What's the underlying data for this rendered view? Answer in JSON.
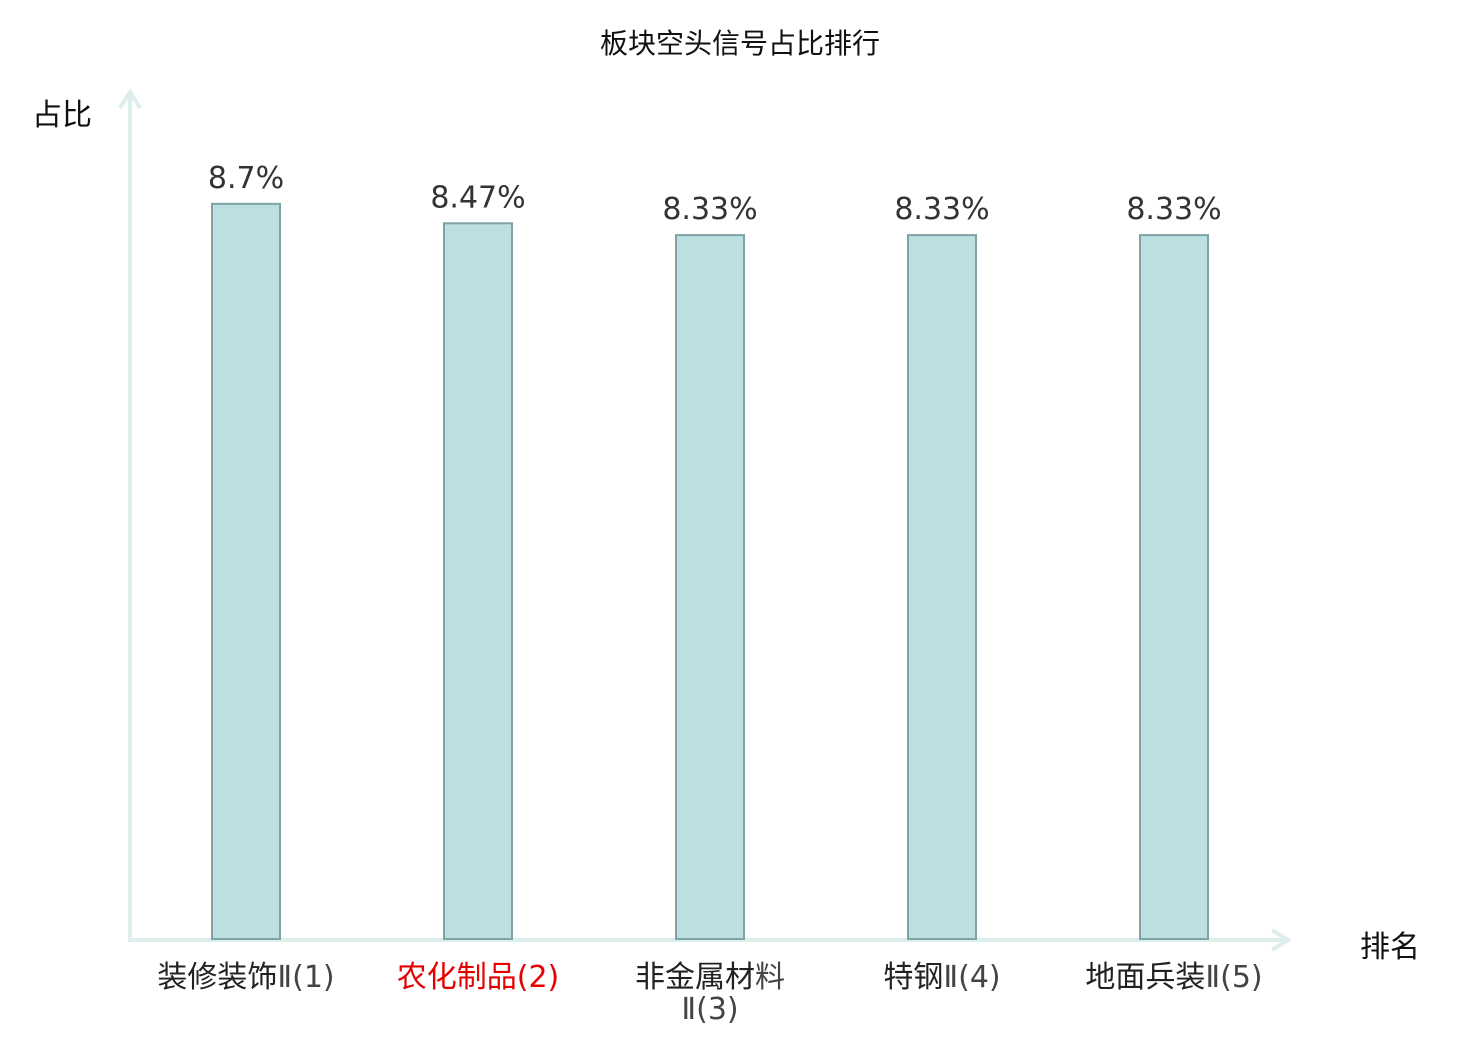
{
  "chart_data": {
    "type": "bar",
    "title": "板块空头信号占比排行",
    "ylabel": "占比",
    "xlabel": "排名",
    "ylim": [
      0,
      10
    ],
    "categories": [
      {
        "name": "装修装饰",
        "suffix": "Ⅱ(1)",
        "highlight": false
      },
      {
        "name": "农化制品",
        "suffix": "(2)",
        "highlight": true
      },
      {
        "name": "非金属材",
        "suffix": "料Ⅱ(3)",
        "highlight": false
      },
      {
        "name": "特钢",
        "suffix": "Ⅱ(4)",
        "highlight": false
      },
      {
        "name": "地面兵装",
        "suffix": "Ⅱ(5)",
        "highlight": false
      }
    ],
    "values": [
      8.7,
      8.47,
      8.33,
      8.33,
      8.33
    ],
    "value_labels": [
      "8.7%",
      "8.47%",
      "8.33%",
      "8.33%",
      "8.33%"
    ],
    "grid": false,
    "colors": {
      "bar_fill": "#bce0e2",
      "bar_stroke": "#7ea3a5",
      "axis": "#dcefed",
      "highlight_label": "#e60000"
    }
  }
}
